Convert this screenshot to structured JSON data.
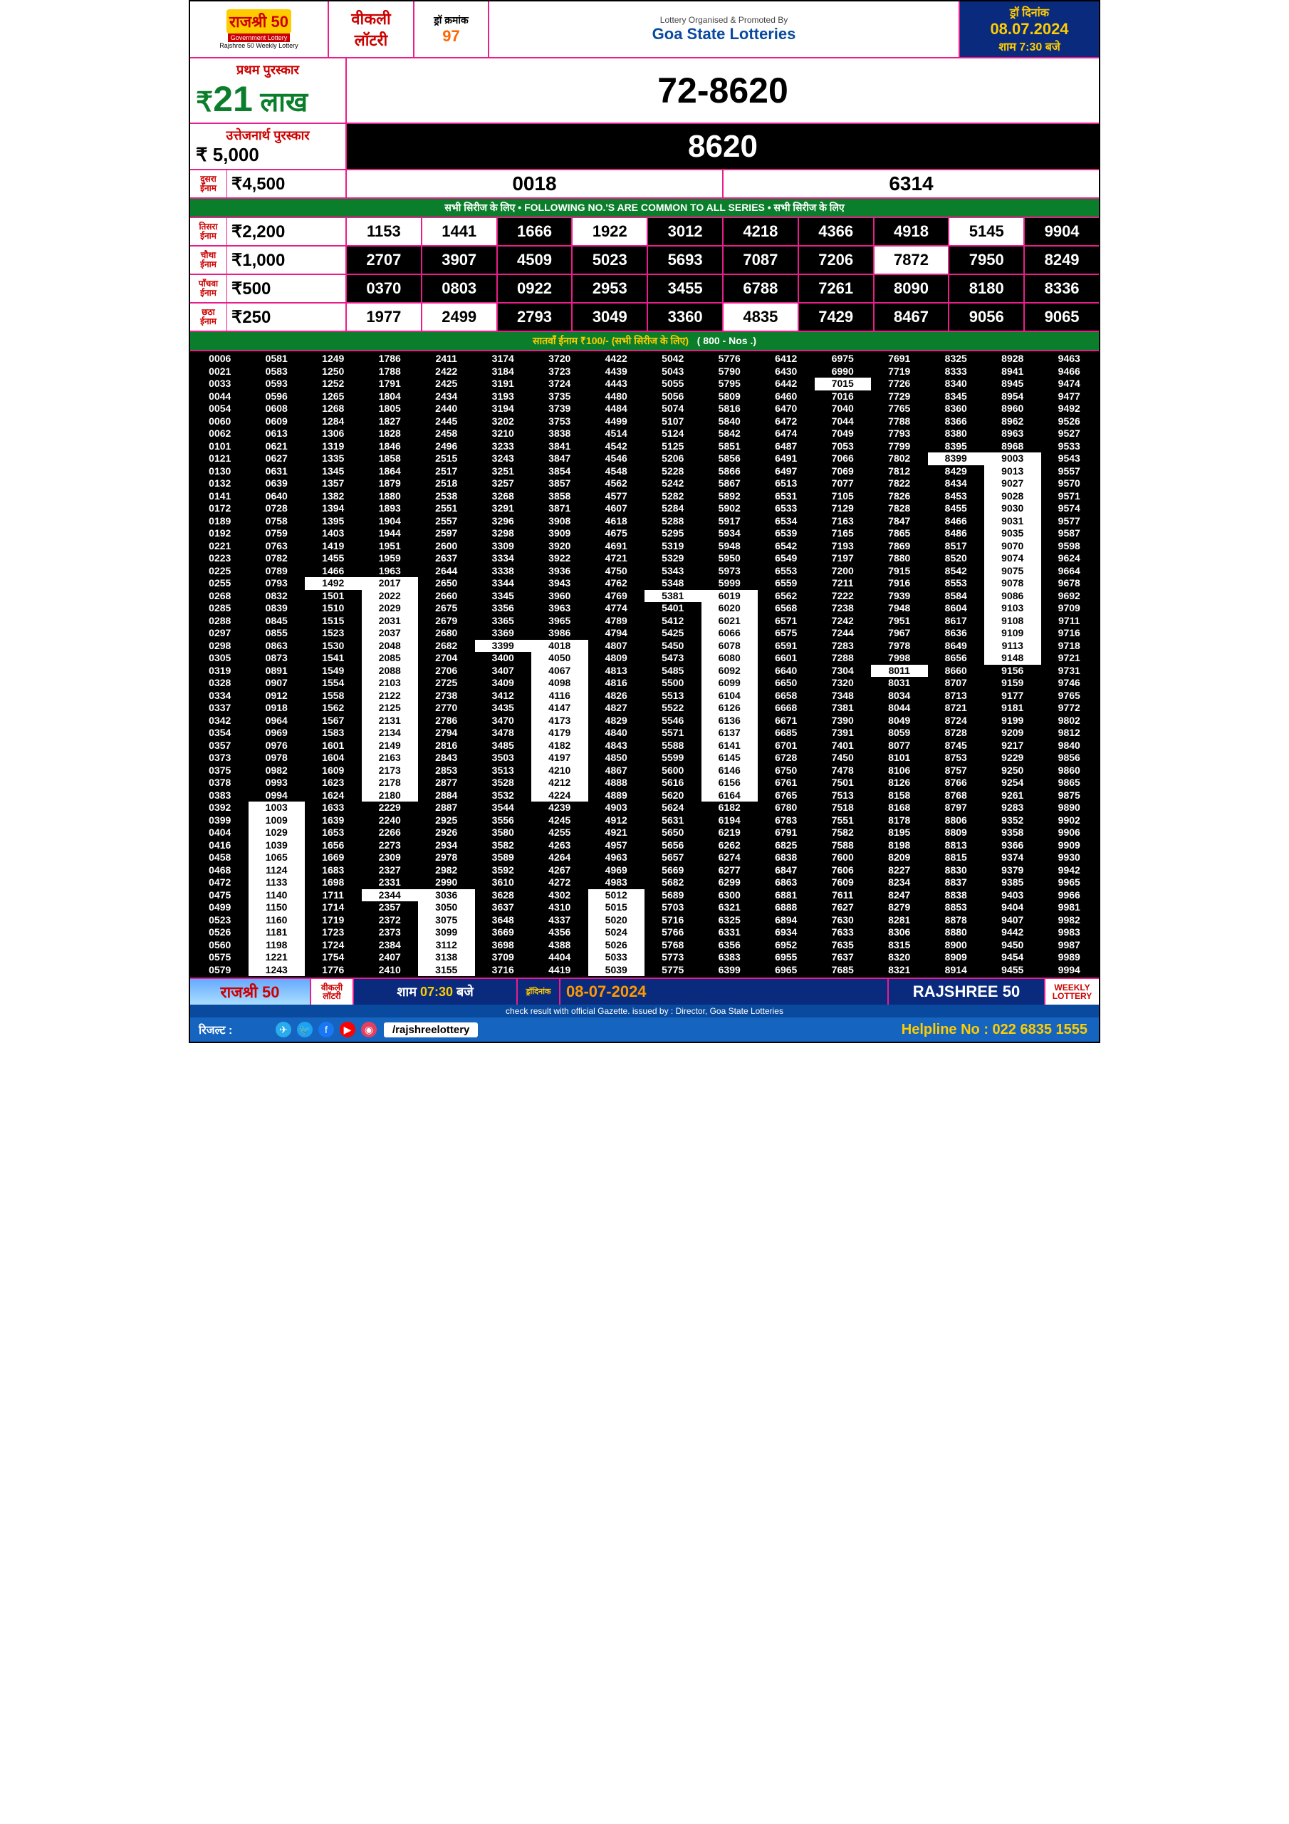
{
  "header": {
    "logo_top": "राजश्री 50",
    "logo_mid": "Government Lottery",
    "logo_bot": "Rajshree 50 Weekly Lottery",
    "weekly1": "वीकली",
    "weekly2": "लॉटरी",
    "draw_label": "ड्रॉ क्रमांक",
    "draw_no": "97",
    "org_text": "Lottery Organised & Promoted By",
    "org_name": "Goa State Lotteries",
    "date_label": "ड्रॉ दिनांक",
    "date": "08.07.2024",
    "time": "शाम 7:30 बजे"
  },
  "first": {
    "label": "प्रथम पुरस्कार",
    "amt_pre": "₹",
    "amt_big": "21",
    "amt_suf": "लाख",
    "number": "72-8620"
  },
  "cons": {
    "label": "उत्तेजनार्थ पुरस्कार",
    "amt": "₹ 5,000",
    "number": "8620"
  },
  "second": {
    "label": "दुसरा\nईनाम",
    "amt": "₹4,500",
    "nums": [
      "0018",
      "6314"
    ]
  },
  "common_bar": "सभी सिरीज के लिए • FOLLOWING NO.'S ARE COMMON TO ALL SERIES • सभी सिरीज के लिए",
  "tiers": [
    {
      "label": "तिसरा\nईनाम",
      "amt": "₹2,200",
      "nums": [
        {
          "v": "1153",
          "w": true
        },
        {
          "v": "1441",
          "w": true
        },
        {
          "v": "1666",
          "w": false
        },
        {
          "v": "1922",
          "w": true
        },
        {
          "v": "3012",
          "w": false
        },
        {
          "v": "4218",
          "w": false
        },
        {
          "v": "4366",
          "w": false
        },
        {
          "v": "4918",
          "w": false
        },
        {
          "v": "5145",
          "w": true
        },
        {
          "v": "9904",
          "w": false
        }
      ]
    },
    {
      "label": "चौथा\nईनाम",
      "amt": "₹1,000",
      "nums": [
        {
          "v": "2707",
          "w": false
        },
        {
          "v": "3907",
          "w": false
        },
        {
          "v": "4509",
          "w": false
        },
        {
          "v": "5023",
          "w": false
        },
        {
          "v": "5693",
          "w": false
        },
        {
          "v": "7087",
          "w": false
        },
        {
          "v": "7206",
          "w": false
        },
        {
          "v": "7872",
          "w": true
        },
        {
          "v": "7950",
          "w": false
        },
        {
          "v": "8249",
          "w": false
        }
      ]
    },
    {
      "label": "पाँचवा\nईनाम",
      "amt": "₹500",
      "nums": [
        {
          "v": "0370",
          "w": false
        },
        {
          "v": "0803",
          "w": false
        },
        {
          "v": "0922",
          "w": false
        },
        {
          "v": "2953",
          "w": false
        },
        {
          "v": "3455",
          "w": false
        },
        {
          "v": "6788",
          "w": false
        },
        {
          "v": "7261",
          "w": false
        },
        {
          "v": "8090",
          "w": false
        },
        {
          "v": "8180",
          "w": false
        },
        {
          "v": "8336",
          "w": false
        }
      ]
    },
    {
      "label": "छठा\nईनाम",
      "amt": "₹250",
      "nums": [
        {
          "v": "1977",
          "w": true
        },
        {
          "v": "2499",
          "w": true
        },
        {
          "v": "2793",
          "w": false
        },
        {
          "v": "3049",
          "w": false
        },
        {
          "v": "3360",
          "w": false
        },
        {
          "v": "4835",
          "w": true
        },
        {
          "v": "7429",
          "w": false
        },
        {
          "v": "8467",
          "w": false
        },
        {
          "v": "9056",
          "w": false
        },
        {
          "v": "9065",
          "w": false
        }
      ]
    }
  ],
  "seventh_bar_l": "सातवाँ ईनाम ₹100/- (सभी सिरीज के लिए)",
  "seventh_bar_r": "( 800 - Nos .)",
  "grid_cols": [
    [
      "0006",
      "0021",
      "0033",
      "0044",
      "0054",
      "0060",
      "0062",
      "0101",
      "0121",
      "0130",
      "0132",
      "0141",
      "0172",
      "0189",
      "0192",
      "0221",
      "0223",
      "0225",
      "0255",
      "0268",
      "0285",
      "0288",
      "0297",
      "0298",
      "0305",
      "0319",
      "0328",
      "0334",
      "0337",
      "0342",
      "0354",
      "0357",
      "0373",
      "0375",
      "0378",
      "0383",
      "0392",
      "0399",
      "0404",
      "0416",
      "0458",
      "0468",
      "0472",
      "0475",
      "0499",
      "0523",
      "0526",
      "0560",
      "0575",
      "0579"
    ],
    [
      "0581",
      "0583",
      "0593",
      "0596",
      "0608",
      "0609",
      "0613",
      "0621",
      "0627",
      "0631",
      "0639",
      "0640",
      "0728",
      "0758",
      "0759",
      "0763",
      "0782",
      "0789",
      "0793",
      "0832",
      "0839",
      "0845",
      "0855",
      "0863",
      "0873",
      "0891",
      "0907",
      "0912",
      "0918",
      "0964",
      "0969",
      "0976",
      "0978",
      "0982",
      "0993",
      "0994",
      "1003",
      "1009",
      "1029",
      "1039",
      "1065",
      "1124",
      "1133",
      "1140",
      "1150",
      "1160",
      "1181",
      "1198",
      "1221",
      "1243"
    ],
    [
      "1249",
      "1250",
      "1252",
      "1265",
      "1268",
      "1284",
      "1306",
      "1319",
      "1335",
      "1345",
      "1357",
      "1382",
      "1394",
      "1395",
      "1403",
      "1419",
      "1455",
      "1466",
      "1492",
      "1501",
      "1510",
      "1515",
      "1523",
      "1530",
      "1541",
      "1549",
      "1554",
      "1558",
      "1562",
      "1567",
      "1583",
      "1601",
      "1604",
      "1609",
      "1623",
      "1624",
      "1633",
      "1639",
      "1653",
      "1656",
      "1669",
      "1683",
      "1698",
      "1711",
      "1714",
      "1719",
      "1723",
      "1724",
      "1754",
      "1776"
    ],
    [
      "1786",
      "1788",
      "1791",
      "1804",
      "1805",
      "1827",
      "1828",
      "1846",
      "1858",
      "1864",
      "1879",
      "1880",
      "1893",
      "1904",
      "1944",
      "1951",
      "1959",
      "1963",
      "2017",
      "2022",
      "2029",
      "2031",
      "2037",
      "2048",
      "2085",
      "2088",
      "2103",
      "2122",
      "2125",
      "2131",
      "2134",
      "2149",
      "2163",
      "2173",
      "2178",
      "2180",
      "2229",
      "2240",
      "2266",
      "2273",
      "2309",
      "2327",
      "2331",
      "2344",
      "2357",
      "2372",
      "2373",
      "2384",
      "2407",
      "2410"
    ],
    [
      "2411",
      "2422",
      "2425",
      "2434",
      "2440",
      "2445",
      "2458",
      "2496",
      "2515",
      "2517",
      "2518",
      "2538",
      "2551",
      "2557",
      "2597",
      "2600",
      "2637",
      "2644",
      "2650",
      "2660",
      "2675",
      "2679",
      "2680",
      "2682",
      "2704",
      "2706",
      "2725",
      "2738",
      "2770",
      "2786",
      "2794",
      "2816",
      "2843",
      "2853",
      "2877",
      "2884",
      "2887",
      "2925",
      "2926",
      "2934",
      "2978",
      "2982",
      "2990",
      "3036",
      "3050",
      "3075",
      "3099",
      "3112",
      "3138",
      "3155"
    ],
    [
      "3174",
      "3184",
      "3191",
      "3193",
      "3194",
      "3202",
      "3210",
      "3233",
      "3243",
      "3251",
      "3257",
      "3268",
      "3291",
      "3296",
      "3298",
      "3309",
      "3334",
      "3338",
      "3344",
      "3345",
      "3356",
      "3365",
      "3369",
      "3399",
      "3400",
      "3407",
      "3409",
      "3412",
      "3435",
      "3470",
      "3478",
      "3485",
      "3503",
      "3513",
      "3528",
      "3532",
      "3544",
      "3556",
      "3580",
      "3582",
      "3589",
      "3592",
      "3610",
      "3628",
      "3637",
      "3648",
      "3669",
      "3698",
      "3709",
      "3716"
    ],
    [
      "3720",
      "3723",
      "3724",
      "3735",
      "3739",
      "3753",
      "3838",
      "3841",
      "3847",
      "3854",
      "3857",
      "3858",
      "3871",
      "3908",
      "3909",
      "3920",
      "3922",
      "3936",
      "3943",
      "3960",
      "3963",
      "3965",
      "3986",
      "4018",
      "4050",
      "4067",
      "4098",
      "4116",
      "4147",
      "4173",
      "4179",
      "4182",
      "4197",
      "4210",
      "4212",
      "4224",
      "4239",
      "4245",
      "4255",
      "4263",
      "4264",
      "4267",
      "4272",
      "4302",
      "4310",
      "4337",
      "4356",
      "4388",
      "4404",
      "4419"
    ],
    [
      "4422",
      "4439",
      "4443",
      "4480",
      "4484",
      "4499",
      "4514",
      "4542",
      "4546",
      "4548",
      "4562",
      "4577",
      "4607",
      "4618",
      "4675",
      "4691",
      "4721",
      "4750",
      "4762",
      "4769",
      "4774",
      "4789",
      "4794",
      "4807",
      "4809",
      "4813",
      "4816",
      "4826",
      "4827",
      "4829",
      "4840",
      "4843",
      "4850",
      "4867",
      "4888",
      "4889",
      "4903",
      "4912",
      "4921",
      "4957",
      "4963",
      "4969",
      "4983",
      "5012",
      "5015",
      "5020",
      "5024",
      "5026",
      "5033",
      "5039"
    ],
    [
      "5042",
      "5043",
      "5055",
      "5056",
      "5074",
      "5107",
      "5124",
      "5125",
      "5206",
      "5228",
      "5242",
      "5282",
      "5284",
      "5288",
      "5295",
      "5319",
      "5329",
      "5343",
      "5348",
      "5381",
      "5401",
      "5412",
      "5425",
      "5450",
      "5473",
      "5485",
      "5500",
      "5513",
      "5522",
      "5546",
      "5571",
      "5588",
      "5599",
      "5600",
      "5616",
      "5620",
      "5624",
      "5631",
      "5650",
      "5656",
      "5657",
      "5669",
      "5682",
      "5689",
      "5703",
      "5716",
      "5766",
      "5768",
      "5773",
      "5775"
    ],
    [
      "5776",
      "5790",
      "5795",
      "5809",
      "5816",
      "5840",
      "5842",
      "5851",
      "5856",
      "5866",
      "5867",
      "5892",
      "5902",
      "5917",
      "5934",
      "5948",
      "5950",
      "5973",
      "5999",
      "6019",
      "6020",
      "6021",
      "6066",
      "6078",
      "6080",
      "6092",
      "6099",
      "6104",
      "6126",
      "6136",
      "6137",
      "6141",
      "6145",
      "6146",
      "6156",
      "6164",
      "6182",
      "6194",
      "6219",
      "6262",
      "6274",
      "6277",
      "6299",
      "6300",
      "6321",
      "6325",
      "6331",
      "6356",
      "6383",
      "6399"
    ],
    [
      "6412",
      "6430",
      "6442",
      "6460",
      "6470",
      "6472",
      "6474",
      "6487",
      "6491",
      "6497",
      "6513",
      "6531",
      "6533",
      "6534",
      "6539",
      "6542",
      "6549",
      "6553",
      "6559",
      "6562",
      "6568",
      "6571",
      "6575",
      "6591",
      "6601",
      "6640",
      "6650",
      "6658",
      "6668",
      "6671",
      "6685",
      "6701",
      "6728",
      "6750",
      "6761",
      "6765",
      "6780",
      "6783",
      "6791",
      "6825",
      "6838",
      "6847",
      "6863",
      "6881",
      "6888",
      "6894",
      "6934",
      "6952",
      "6955",
      "6965"
    ],
    [
      "6975",
      "6990",
      "7015",
      "7016",
      "7040",
      "7044",
      "7049",
      "7053",
      "7066",
      "7069",
      "7077",
      "7105",
      "7129",
      "7163",
      "7165",
      "7193",
      "7197",
      "7200",
      "7211",
      "7222",
      "7238",
      "7242",
      "7244",
      "7283",
      "7288",
      "7304",
      "7320",
      "7348",
      "7381",
      "7390",
      "7391",
      "7401",
      "7450",
      "7478",
      "7501",
      "7513",
      "7518",
      "7551",
      "7582",
      "7588",
      "7600",
      "7606",
      "7609",
      "7611",
      "7627",
      "7630",
      "7633",
      "7635",
      "7637",
      "7685"
    ],
    [
      "7691",
      "7719",
      "7726",
      "7729",
      "7765",
      "7788",
      "7793",
      "7799",
      "7802",
      "7812",
      "7822",
      "7826",
      "7828",
      "7847",
      "7865",
      "7869",
      "7880",
      "7915",
      "7916",
      "7939",
      "7948",
      "7951",
      "7967",
      "7978",
      "7998",
      "8011",
      "8031",
      "8034",
      "8044",
      "8049",
      "8059",
      "8077",
      "8101",
      "8106",
      "8126",
      "8158",
      "8168",
      "8178",
      "8195",
      "8198",
      "8209",
      "8227",
      "8234",
      "8247",
      "8279",
      "8281",
      "8306",
      "8315",
      "8320",
      "8321"
    ],
    [
      "8325",
      "8333",
      "8340",
      "8345",
      "8360",
      "8366",
      "8380",
      "8395",
      "8399",
      "8429",
      "8434",
      "8453",
      "8455",
      "8466",
      "8486",
      "8517",
      "8520",
      "8542",
      "8553",
      "8584",
      "8604",
      "8617",
      "8636",
      "8649",
      "8656",
      "8660",
      "8707",
      "8713",
      "8721",
      "8724",
      "8728",
      "8745",
      "8753",
      "8757",
      "8766",
      "8768",
      "8797",
      "8806",
      "8809",
      "8813",
      "8815",
      "8830",
      "8837",
      "8838",
      "8853",
      "8878",
      "8880",
      "8900",
      "8909",
      "8914"
    ],
    [
      "8928",
      "8941",
      "8945",
      "8954",
      "8960",
      "8962",
      "8963",
      "8968",
      "9003",
      "9013",
      "9027",
      "9028",
      "9030",
      "9031",
      "9035",
      "9070",
      "9074",
      "9075",
      "9078",
      "9086",
      "9103",
      "9108",
      "9109",
      "9113",
      "9148",
      "9156",
      "9159",
      "9177",
      "9181",
      "9199",
      "9209",
      "9217",
      "9229",
      "9250",
      "9254",
      "9261",
      "9283",
      "9352",
      "9358",
      "9366",
      "9374",
      "9379",
      "9385",
      "9403",
      "9404",
      "9407",
      "9442",
      "9450",
      "9454",
      "9455"
    ],
    [
      "9463",
      "9466",
      "9474",
      "9477",
      "9492",
      "9526",
      "9527",
      "9533",
      "9543",
      "9557",
      "9570",
      "9571",
      "9574",
      "9577",
      "9587",
      "9598",
      "9624",
      "9664",
      "9678",
      "9692",
      "9709",
      "9711",
      "9716",
      "9718",
      "9721",
      "9731",
      "9746",
      "9765",
      "9772",
      "9802",
      "9812",
      "9840",
      "9856",
      "9860",
      "9865",
      "9875",
      "9890",
      "9902",
      "9906",
      "9909",
      "9930",
      "9942",
      "9965",
      "9966",
      "9981",
      "9982",
      "9983",
      "9987",
      "9989",
      "9994"
    ]
  ],
  "grid_white": {
    "1": {
      "36": true,
      "37": true,
      "38": true,
      "39": true,
      "40": true,
      "41": true,
      "42": true,
      "43": true,
      "44": true,
      "45": true,
      "46": true,
      "47": true,
      "48": true,
      "49": true
    },
    "2": {
      "18": true
    },
    "3": {
      "18": true,
      "19": true,
      "20": true,
      "21": true,
      "22": true,
      "23": true,
      "24": true,
      "25": true,
      "26": true,
      "27": true,
      "28": true,
      "29": true,
      "30": true,
      "31": true,
      "32": true,
      "33": true,
      "34": true,
      "35": true,
      "43": true
    },
    "4": {
      "43": true,
      "44": true,
      "45": true,
      "46": true,
      "47": true,
      "48": true,
      "49": true
    },
    "5": {
      "23": true
    },
    "6": {
      "23": true,
      "24": true,
      "25": true,
      "26": true,
      "27": true,
      "28": true,
      "29": true,
      "30": true,
      "31": true,
      "32": true,
      "33": true,
      "34": true,
      "35": true
    },
    "7": {
      "43": true,
      "44": true,
      "45": true,
      "46": true,
      "47": true,
      "48": true,
      "49": true
    },
    "8": {
      "19": true
    },
    "9": {
      "19": true,
      "20": true,
      "21": true,
      "22": true,
      "23": true,
      "24": true,
      "25": true,
      "26": true,
      "27": true,
      "28": true,
      "29": true,
      "30": true,
      "31": true,
      "32": true,
      "33": true,
      "34": true,
      "35": true
    },
    "11": {
      "2": true
    },
    "12": {
      "25": true
    },
    "13": {
      "8": true
    },
    "14": {
      "8": true,
      "9": true,
      "10": true,
      "11": true,
      "12": true,
      "13": true,
      "14": true,
      "15": true,
      "16": true,
      "17": true,
      "18": true,
      "19": true,
      "20": true,
      "21": true,
      "22": true,
      "23": true,
      "24": true
    }
  },
  "footer": {
    "logo": "राजश्री 50",
    "weekly1": "वीकली",
    "weekly2": "लॉटरी",
    "time_pre": "शाम",
    "time": "07:30",
    "time_suf": "बजे",
    "drawno_l1": "ड्रॉ",
    "drawno_l2": "दिनांक",
    "date": "08-07-2024",
    "raj": "RAJSHREE 50",
    "wl1": "WEEKLY",
    "wl2": "LOTTERY",
    "check": "check result with official Gazette. issued by : Director, Goa State Lotteries",
    "result": "रिजल्ट :",
    "handle": "/rajshreelottery",
    "helpline": "Helpline No : 022 6835 1555"
  },
  "colors": {
    "magenta": "#e91e8c",
    "green": "#0a7e2a",
    "navy": "#0a2a7e",
    "blue": "#1565c0",
    "red": "#c00",
    "orange": "#ff6600",
    "yellow": "#ffcc00"
  }
}
